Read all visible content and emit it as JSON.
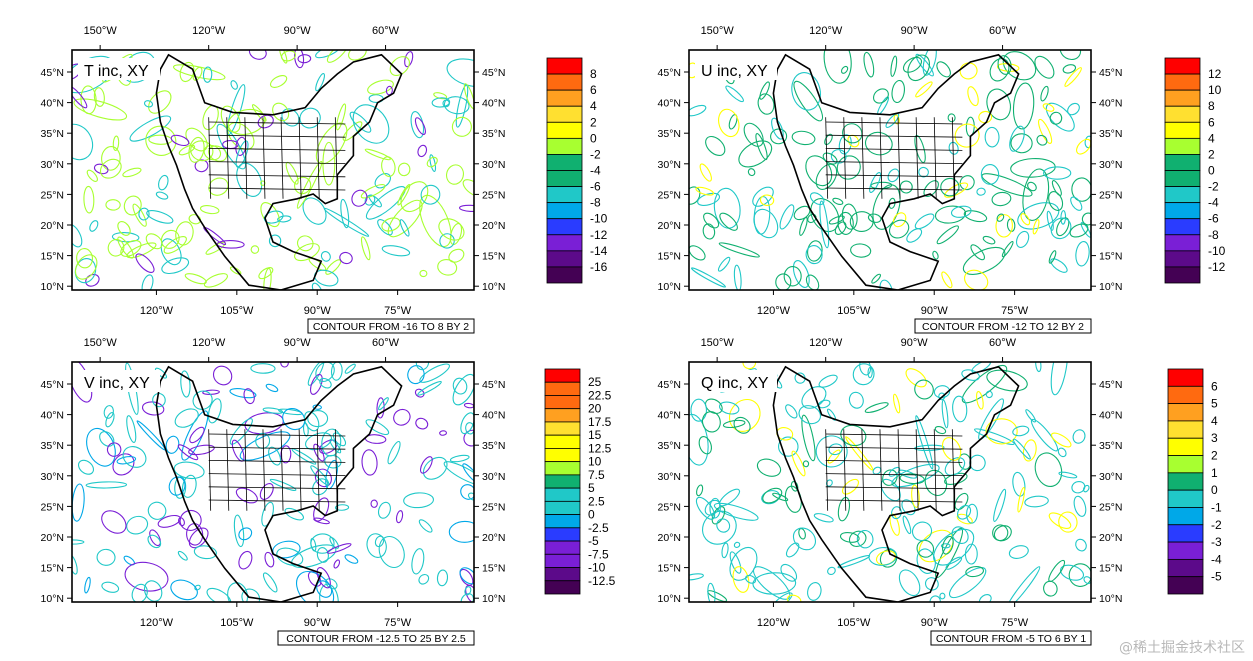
{
  "watermark": "@稀土掘金技术社区",
  "colors": [
    "#440154",
    "#5c0a8a",
    "#7a1fd6",
    "#2a3cff",
    "#00a8e8",
    "#20c8c8",
    "#10b070",
    "#a8ff30",
    "#ffff00",
    "#ffe030",
    "#ffa020",
    "#ff6a10",
    "#ff0000"
  ],
  "axes": {
    "top_lon_ticks": [
      "150°W",
      "120°W",
      "90°W",
      "60°W"
    ],
    "bottom_lon_ticks": [
      "120°W",
      "105°W",
      "90°W",
      "75°W"
    ],
    "lat_ticks": [
      "45°N",
      "40°N",
      "35°N",
      "30°N",
      "25°N",
      "20°N",
      "15°N",
      "10°N"
    ]
  },
  "chart_data": [
    {
      "type": "heatmap",
      "title": "T inc, XY",
      "contour_info": "CONTOUR FROM -16 TO 8 BY 2",
      "levels": [
        "8",
        "6",
        "4",
        "2",
        "0",
        "-2",
        "-4",
        "-6",
        "-8",
        "-10",
        "-12",
        "-14",
        "-16"
      ],
      "dominant_colors": [
        "#a8ff30",
        "#20c8c8",
        "#7a1fd6"
      ]
    },
    {
      "type": "heatmap",
      "title": "U inc, XY",
      "contour_info": "CONTOUR FROM -12 TO 12 BY 2",
      "levels": [
        "12",
        "10",
        "8",
        "6",
        "4",
        "2",
        "0",
        "-2",
        "-4",
        "-6",
        "-8",
        "-10",
        "-12"
      ],
      "dominant_colors": [
        "#10b070",
        "#20c8c8",
        "#ffff00"
      ]
    },
    {
      "type": "heatmap",
      "title": "V inc, XY",
      "contour_info": "CONTOUR FROM -12.5 TO 25 BY 2.5",
      "levels": [
        "25",
        "22.5",
        "20",
        "17.5",
        "15",
        "12.5",
        "10",
        "7.5",
        "5",
        "2.5",
        "0",
        "-2.5",
        "-5",
        "-7.5",
        "-10",
        "-12.5"
      ],
      "dominant_colors": [
        "#20c8c8",
        "#7a1fd6",
        "#00a8e8"
      ]
    },
    {
      "type": "heatmap",
      "title": "Q inc, XY",
      "contour_info": "CONTOUR FROM -5 TO 6 BY 1",
      "levels": [
        "6",
        "5",
        "4",
        "3",
        "2",
        "1",
        "0",
        "-1",
        "-2",
        "-3",
        "-4",
        "-5"
      ],
      "dominant_colors": [
        "#20c8c8",
        "#10b070",
        "#ffff00"
      ]
    }
  ]
}
